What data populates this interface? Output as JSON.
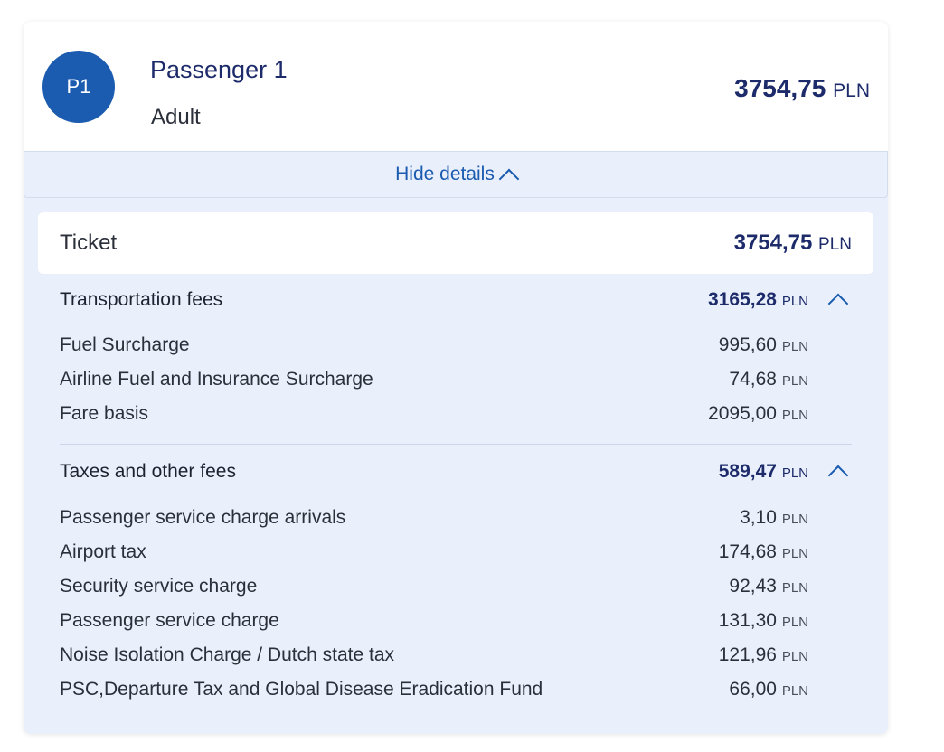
{
  "passenger": {
    "initials": "P1",
    "name": "Passenger 1",
    "type": "Adult",
    "total_amount": "3754,75",
    "currency": "PLN"
  },
  "details_toggle": {
    "label": "Hide details"
  },
  "ticket": {
    "label": "Ticket",
    "amount": "3754,75",
    "currency": "PLN"
  },
  "sections": [
    {
      "title": "Transportation fees",
      "amount": "3165,28",
      "currency": "PLN",
      "items": [
        {
          "label": "Fuel Surcharge",
          "amount": "995,60",
          "currency": "PLN"
        },
        {
          "label": "Airline Fuel and Insurance Surcharge",
          "amount": "74,68",
          "currency": "PLN"
        },
        {
          "label": "Fare basis",
          "amount": "2095,00",
          "currency": "PLN"
        }
      ]
    },
    {
      "title": "Taxes and other fees",
      "amount": "589,47",
      "currency": "PLN",
      "items": [
        {
          "label": "Passenger service charge arrivals",
          "amount": "3,10",
          "currency": "PLN"
        },
        {
          "label": "Airport tax",
          "amount": "174,68",
          "currency": "PLN"
        },
        {
          "label": "Security service charge",
          "amount": "92,43",
          "currency": "PLN"
        },
        {
          "label": "Passenger service charge",
          "amount": "131,30",
          "currency": "PLN"
        },
        {
          "label": "Noise Isolation Charge / Dutch state tax",
          "amount": "121,96",
          "currency": "PLN"
        },
        {
          "label": "PSC,Departure Tax and Global Disease Eradication Fund",
          "amount": "66,00",
          "currency": "PLN"
        }
      ]
    }
  ],
  "icons": {
    "details_toggle": "chevron-up-icon",
    "section_collapse": "chevron-up-icon"
  },
  "colors": {
    "brand_blue": "#1b5bb0",
    "text_navy": "#1d2b6b",
    "panel_background": "#e9f0fb"
  }
}
